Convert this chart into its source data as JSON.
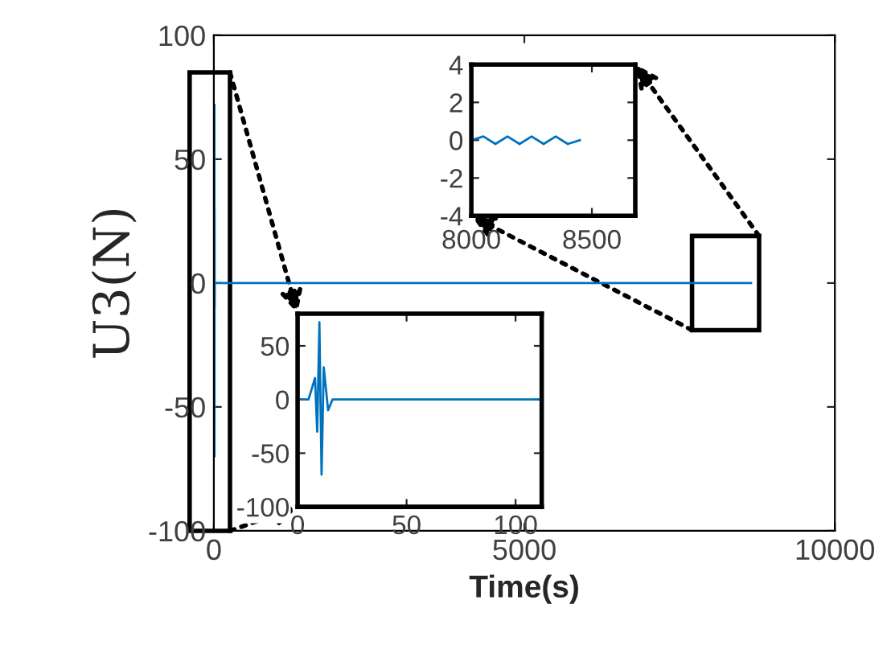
{
  "chart_data": [
    {
      "type": "line",
      "xlabel": "Time(s)",
      "ylabel": "U3(N)",
      "xlim": [
        0,
        10000
      ],
      "ylim": [
        -100,
        100
      ],
      "xticks": [
        0,
        5000,
        10000
      ],
      "yticks": [
        -100,
        -50,
        0,
        50,
        100
      ],
      "grid": false,
      "series": [
        {
          "color": "#0072bd",
          "x": [
            0,
            5,
            8,
            9,
            10,
            11,
            12,
            14,
            16,
            100,
            8650
          ],
          "values": [
            0,
            0,
            20,
            -30,
            72,
            -70,
            30,
            -10,
            0,
            0,
            0
          ]
        }
      ]
    },
    {
      "type": "line",
      "xlim": [
        0,
        112
      ],
      "ylim": [
        -100,
        80
      ],
      "xticks": [
        0,
        50,
        100
      ],
      "yticks": [
        -100,
        -50,
        0,
        50
      ],
      "grid": false,
      "series": [
        {
          "color": "#0072bd",
          "x": [
            0,
            5,
            8,
            9,
            10,
            11,
            12,
            14,
            16,
            112
          ],
          "values": [
            0,
            0,
            20,
            -30,
            72,
            -70,
            30,
            -10,
            0,
            0
          ]
        }
      ]
    },
    {
      "type": "line",
      "xlim": [
        8000,
        8680
      ],
      "ylim": [
        -4,
        4
      ],
      "xticks": [
        8000,
        8500
      ],
      "yticks": [
        -4,
        -2,
        0,
        2,
        4
      ],
      "grid": false,
      "series": [
        {
          "color": "#0072bd",
          "x": [
            8000,
            8050,
            8100,
            8150,
            8200,
            8250,
            8300,
            8350,
            8400,
            8450
          ],
          "values": [
            0,
            0.2,
            -0.2,
            0.2,
            -0.2,
            0.2,
            -0.2,
            0.2,
            -0.2,
            0
          ]
        }
      ]
    }
  ]
}
